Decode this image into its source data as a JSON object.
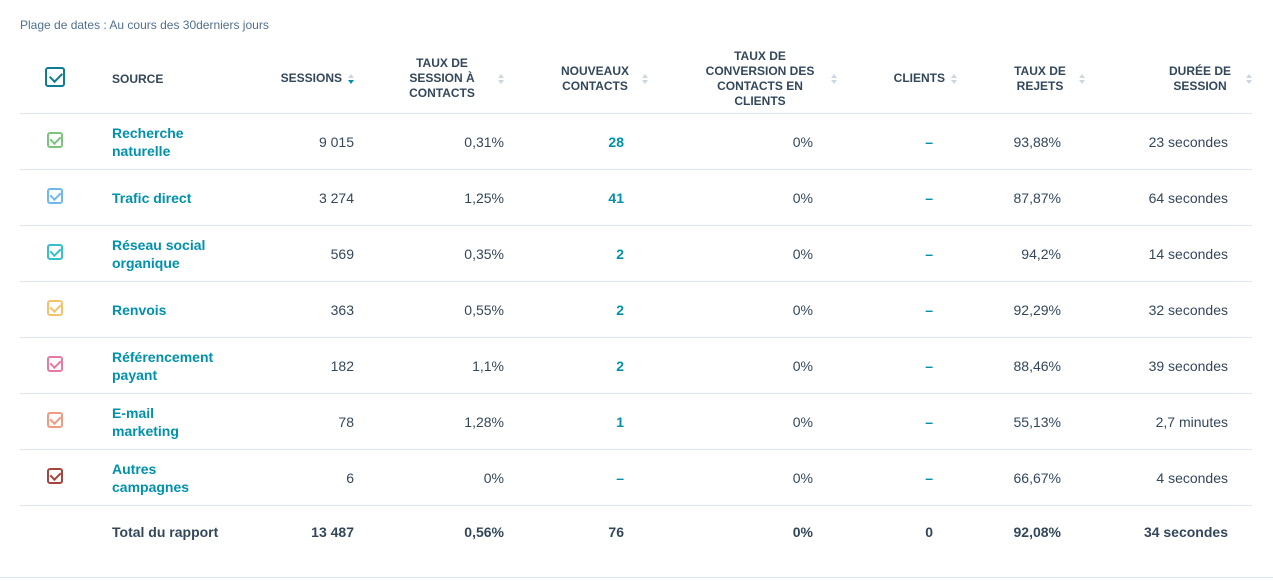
{
  "date_range": "Plage de dates : Au cours des 30derniers jours",
  "headers": {
    "source": "SOURCE",
    "sessions": "SESSIONS",
    "taux_session_contacts": "TAUX DE SESSION À CONTACTS",
    "nouveaux_contacts": "NOUVEAUX CONTACTS",
    "taux_conversion": "TAUX DE CONVERSION DES CONTACTS EN CLIENTS",
    "clients": "CLIENTS",
    "taux_rejets": "TAUX DE REJETS",
    "duree_session": "DURÉE DE SESSION"
  },
  "header_checkbox_color": "#0e7c93",
  "rows": [
    {
      "source": "Recherche naturelle",
      "sessions": "9 015",
      "taux_session": "0,31%",
      "nouveaux": "28",
      "conversion": "0%",
      "clients": "–",
      "rejets": "93,88%",
      "duree": "23 secondes",
      "color": "#7cc47c"
    },
    {
      "source": "Trafic direct",
      "sessions": "3 274",
      "taux_session": "1,25%",
      "nouveaux": "41",
      "conversion": "0%",
      "clients": "–",
      "rejets": "87,87%",
      "duree": "64 secondes",
      "color": "#6eb8ee"
    },
    {
      "source": "Réseau social organique",
      "sessions": "569",
      "taux_session": "0,35%",
      "nouveaux": "2",
      "conversion": "0%",
      "clients": "–",
      "rejets": "94,2%",
      "duree": "14 secondes",
      "color": "#35bfd1"
    },
    {
      "source": "Renvois",
      "sessions": "363",
      "taux_session": "0,55%",
      "nouveaux": "2",
      "conversion": "0%",
      "clients": "–",
      "rejets": "92,29%",
      "duree": "32 secondes",
      "color": "#f5c26b"
    },
    {
      "source": "Référencement payant",
      "sessions": "182",
      "taux_session": "1,1%",
      "nouveaux": "2",
      "conversion": "0%",
      "clients": "–",
      "rejets": "88,46%",
      "duree": "39 secondes",
      "color": "#e879a0"
    },
    {
      "source": "E-mail marketing",
      "sessions": "78",
      "taux_session": "1,28%",
      "nouveaux": "1",
      "conversion": "0%",
      "clients": "–",
      "rejets": "55,13%",
      "duree": "2,7 minutes",
      "color": "#f29a80"
    },
    {
      "source": "Autres campagnes",
      "sessions": "6",
      "taux_session": "0%",
      "nouveaux": "–",
      "conversion": "0%",
      "clients": "–",
      "rejets": "66,67%",
      "duree": "4 secondes",
      "color": "#a6453d"
    }
  ],
  "total": {
    "label": "Total du rapport",
    "sessions": "13 487",
    "taux_session": "0,56%",
    "nouveaux": "76",
    "conversion": "0%",
    "clients": "0",
    "rejets": "92,08%",
    "duree": "34 secondes"
  }
}
